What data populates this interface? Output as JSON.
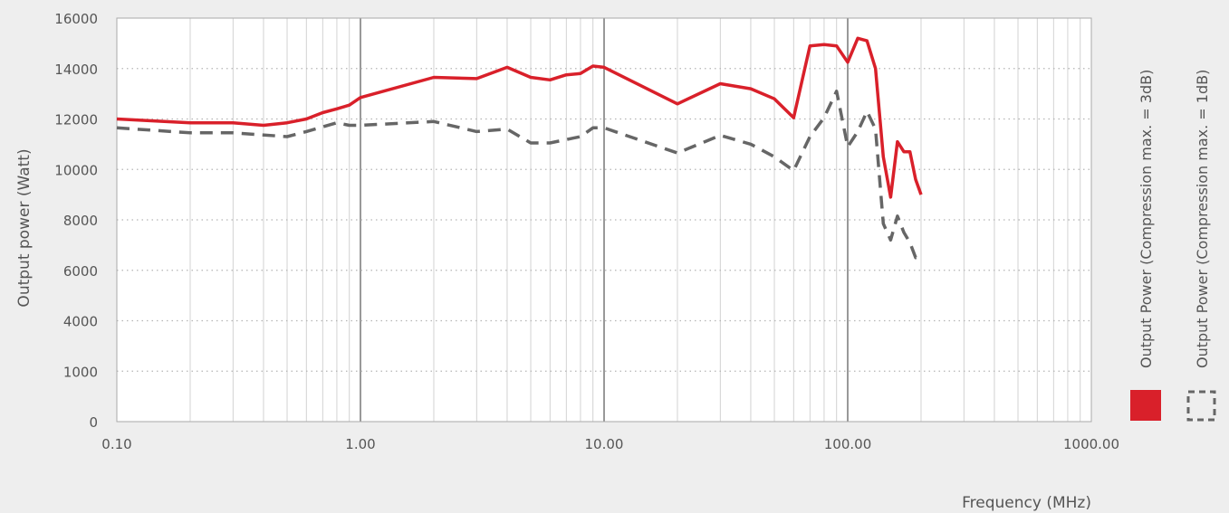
{
  "chart_data": {
    "type": "line",
    "xscale": "log",
    "xlim": [
      0.1,
      1000
    ],
    "ylim": [
      0,
      16000
    ],
    "xlabel": "Frequency (MHz)",
    "ylabel": "Output power (Watt)",
    "x_tick_labels": [
      "0.10",
      "1.00",
      "10.00",
      "100.00",
      "1000.00"
    ],
    "y_tick_values": [
      0,
      1000,
      4000,
      6000,
      8000,
      10000,
      12000,
      14000,
      16000
    ],
    "y_tick_labels": [
      "0",
      "1000",
      "4000",
      "6000",
      "8000",
      "10000",
      "12000",
      "14000",
      "16000"
    ],
    "grid": true,
    "legend_position": "right",
    "series": [
      {
        "name": "Output Power (Compression max. = 3dB)",
        "color": "#d9202a",
        "style": "solid",
        "x": [
          0.1,
          0.2,
          0.3,
          0.4,
          0.5,
          0.6,
          0.7,
          0.8,
          0.9,
          1,
          2,
          3,
          4,
          5,
          6,
          7,
          8,
          9,
          10,
          20,
          30,
          40,
          50,
          60,
          70,
          80,
          90,
          100,
          110,
          120,
          130,
          140,
          150,
          160,
          170,
          180,
          190,
          200
        ],
        "values": [
          12000,
          11850,
          11850,
          11750,
          11850,
          12000,
          12250,
          12400,
          12550,
          12850,
          13650,
          13600,
          14050,
          13650,
          13550,
          13750,
          13800,
          14100,
          14050,
          12600,
          13400,
          13200,
          12800,
          12050,
          14900,
          14950,
          14900,
          14250,
          15200,
          15100,
          14000,
          10500,
          8900,
          11100,
          10700,
          10700,
          9600,
          9000
        ]
      },
      {
        "name": "Output Power (Compression max. = 1dB)",
        "color": "#666666",
        "style": "dashed",
        "x": [
          0.1,
          0.2,
          0.3,
          0.5,
          0.6,
          0.8,
          0.9,
          1,
          2,
          3,
          4,
          5,
          6,
          8,
          9,
          10,
          20,
          30,
          40,
          50,
          60,
          70,
          80,
          90,
          100,
          110,
          120,
          130,
          140,
          150,
          160,
          170,
          180,
          190,
          200
        ],
        "values": [
          11650,
          11450,
          11450,
          11300,
          11500,
          11850,
          11750,
          11750,
          11900,
          11500,
          11600,
          11050,
          11050,
          11300,
          11650,
          11650,
          10650,
          11350,
          11000,
          10500,
          9950,
          11300,
          12050,
          13100,
          10900,
          11500,
          12300,
          11600,
          7850,
          7200,
          8150,
          7500,
          7100,
          6500,
          6600
        ]
      }
    ]
  }
}
